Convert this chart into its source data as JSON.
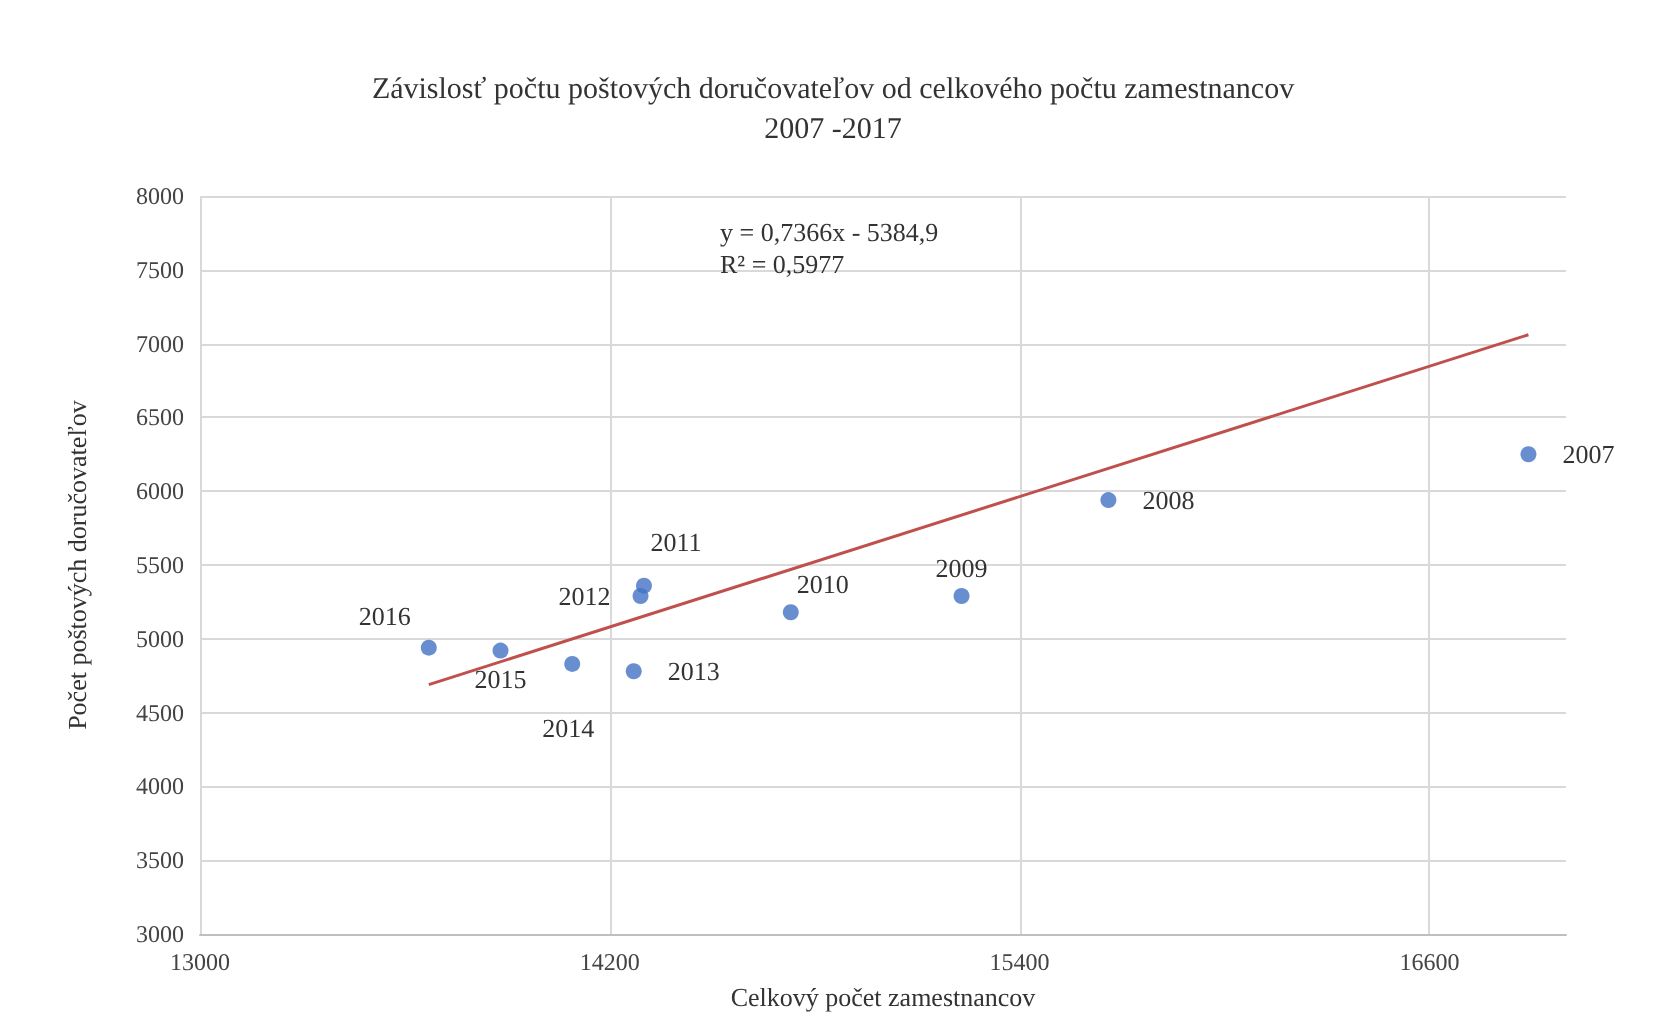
{
  "chart_data": {
    "type": "scatter",
    "title": "Závislosť počtu poštových doručovateľov od celkového počtu zamestnancov\n2007 -2017",
    "xlabel": "Celkový počet zamestnancov",
    "ylabel": "Počet poštových doručovateľov",
    "annotations": [
      "y = 0,7366x - 5384,9\nR² = 0,5977",
      {
        "text": "2016",
        "x": 13670,
        "y": 4940
      },
      {
        "text": "2015",
        "x": 13880,
        "y": 4920
      },
      {
        "text": "2014",
        "x": 14090,
        "y": 4830
      },
      {
        "text": "2013",
        "x": 14270,
        "y": 4780
      },
      {
        "text": "2012",
        "x": 14290,
        "y": 5290
      },
      {
        "text": "2011",
        "x": 14300,
        "y": 5360
      },
      {
        "text": "2010",
        "x": 14730,
        "y": 5180
      },
      {
        "text": "2009",
        "x": 15230,
        "y": 5290
      },
      {
        "text": "2008",
        "x": 15660,
        "y": 5940
      },
      {
        "text": "2007",
        "x": 16890,
        "y": 6250
      }
    ],
    "series": [
      {
        "color": "#4472c4",
        "marker": "circle",
        "x": [
          13670,
          13880,
          14090,
          14270,
          14290,
          14300,
          14730,
          15230,
          15660,
          16890
        ],
        "values": [
          4940,
          4920,
          4830,
          4780,
          5290,
          5360,
          5180,
          5290,
          5940,
          6250
        ]
      },
      {
        "type": "line",
        "color": "#c0504d",
        "marker": "none",
        "x": [
          13670,
          16890
        ],
        "values": [
          4690,
          7060
        ]
      }
    ],
    "xlim": [
      13000,
      17000
    ],
    "xticks": [
      13000,
      14200,
      15400,
      16600
    ],
    "ylim": [
      3000,
      8000
    ],
    "yticks": [
      3000,
      3500,
      4000,
      4500,
      5000,
      5500,
      6000,
      6500,
      7000,
      7500,
      8000
    ],
    "grid": true
  }
}
